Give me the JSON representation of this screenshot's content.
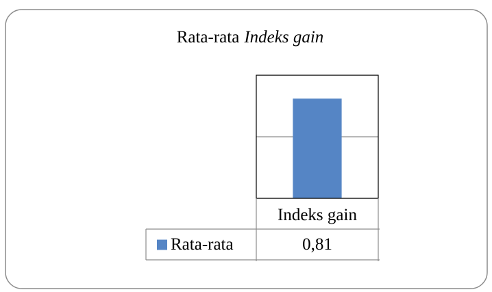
{
  "chart_data": {
    "type": "bar",
    "title": [
      "Rata-rata",
      "Indeks gain"
    ],
    "categories": [
      "Indeks gain"
    ],
    "series": [
      {
        "name": "Rata-rata",
        "color": "#5585c5",
        "values": [
          0.81
        ],
        "value_labels": [
          "0,81"
        ]
      }
    ],
    "ylim": [
      0,
      1
    ],
    "yticks": [
      0,
      0.5,
      1
    ],
    "grid": true
  }
}
